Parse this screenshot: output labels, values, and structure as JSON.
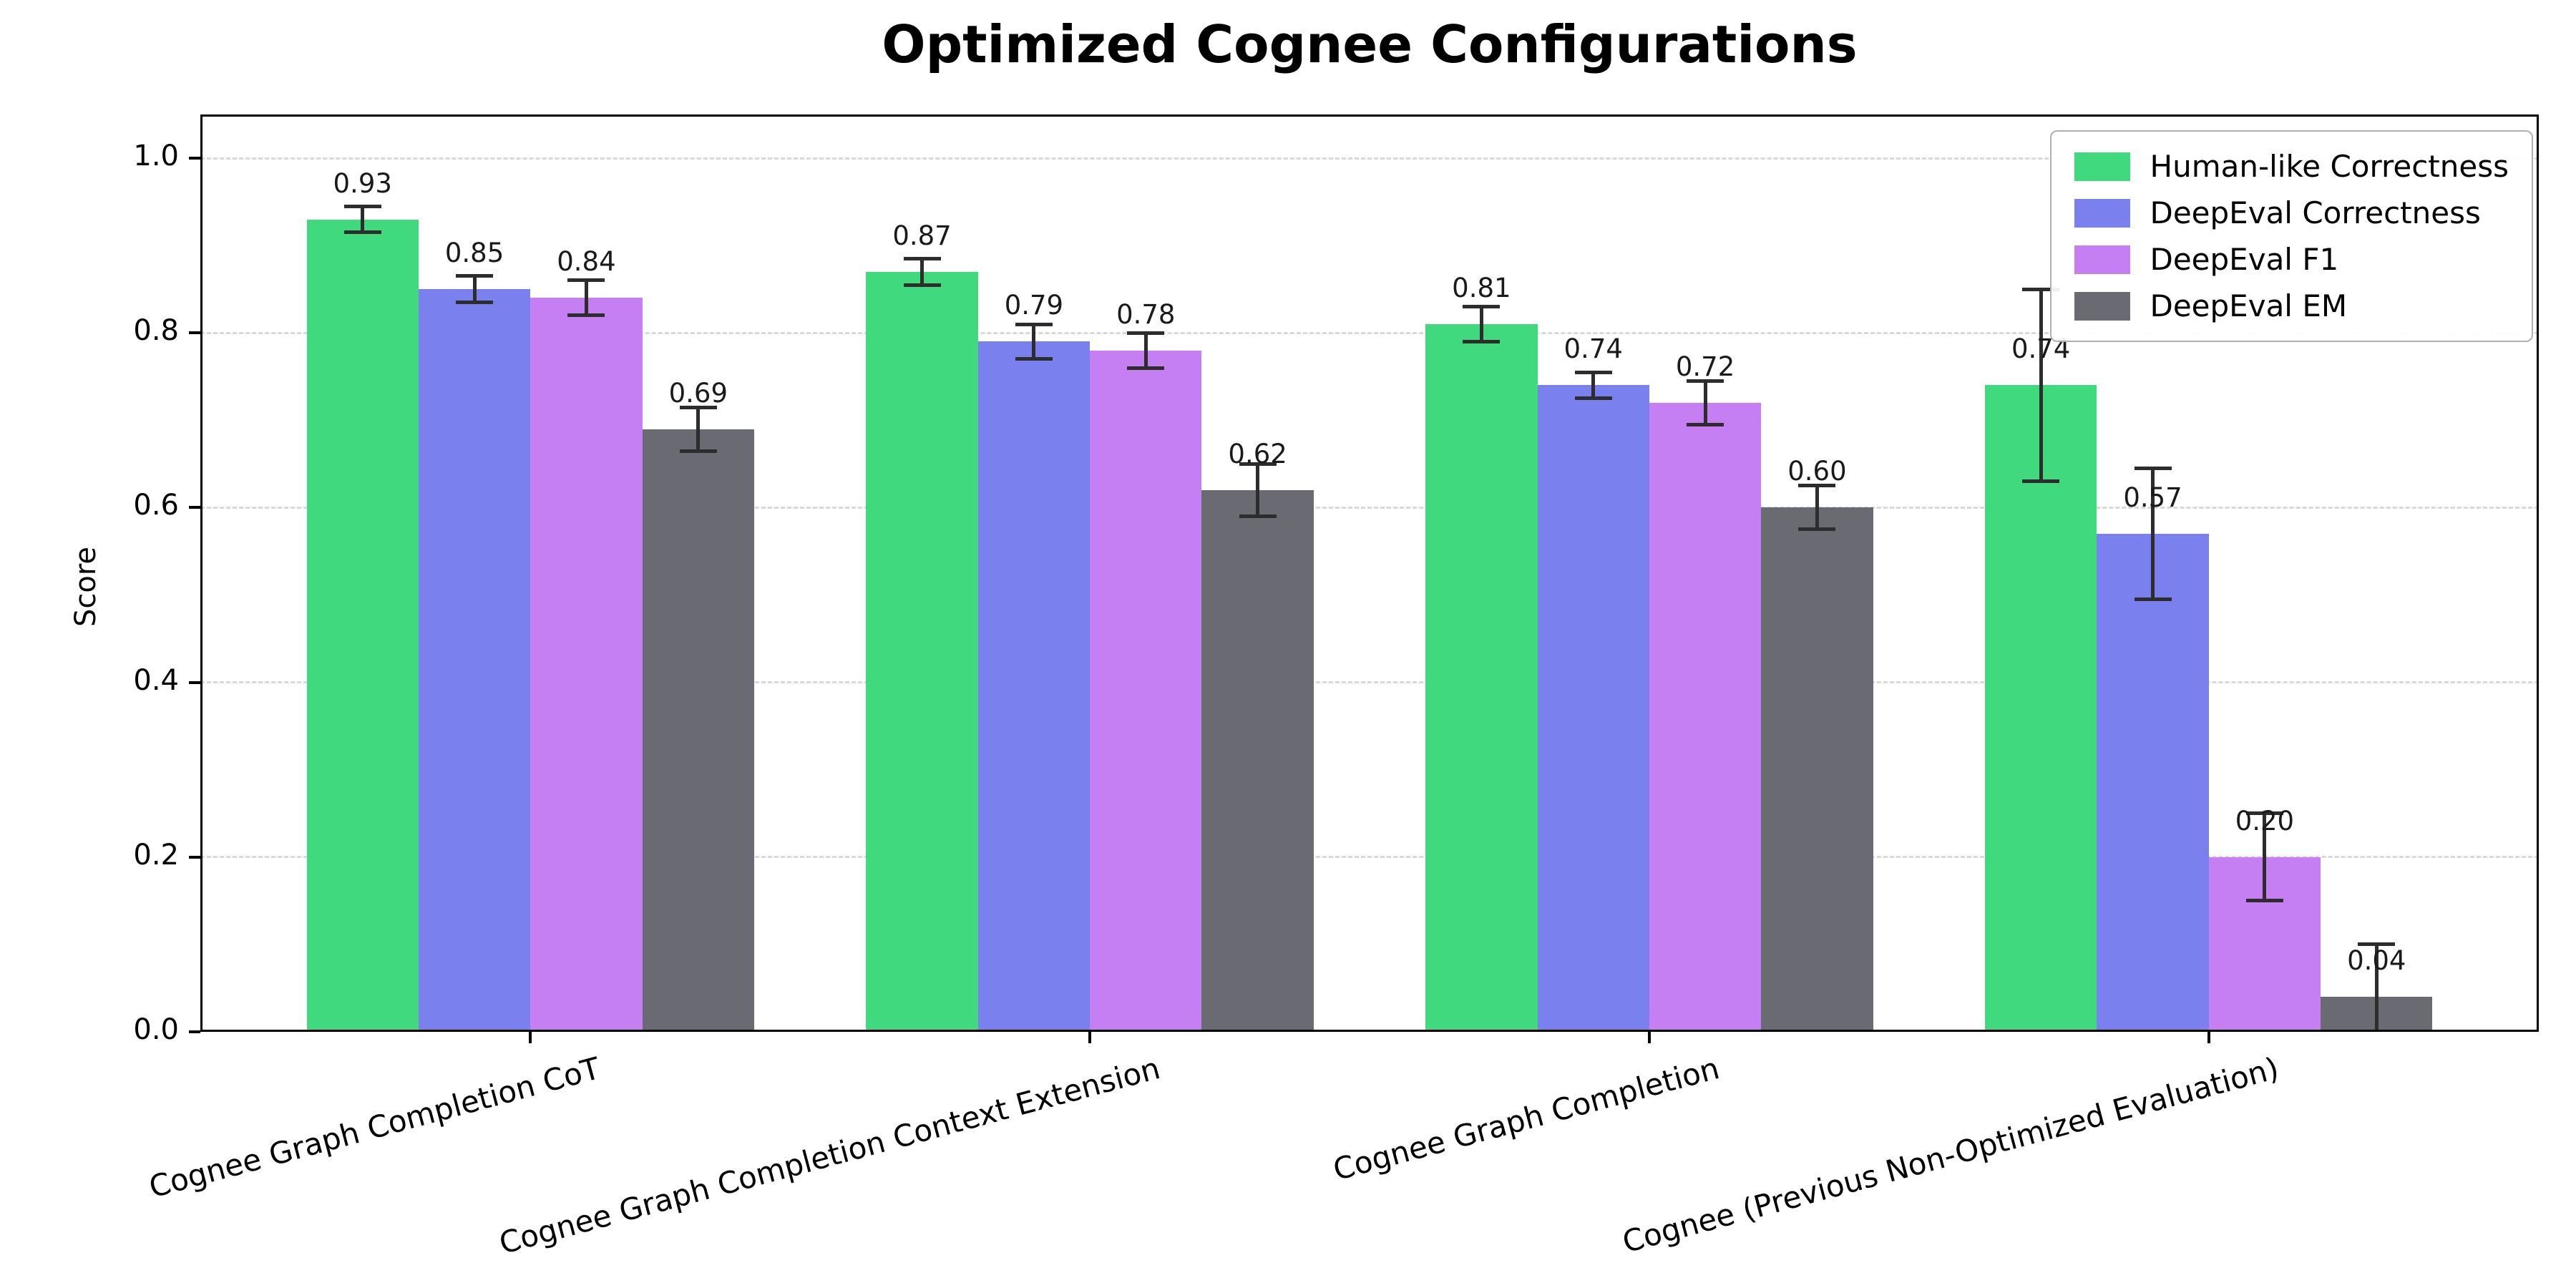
{
  "chart_data": {
    "type": "bar",
    "title": "Optimized Cognee Configurations",
    "ylabel": "Score",
    "xlabel": "",
    "ylim": [
      0,
      1.05
    ],
    "ytick_values": [
      0,
      0.2,
      0.4,
      0.6,
      0.8,
      1.0
    ],
    "ytick_labels": [
      "0.0",
      "0.2",
      "0.4",
      "0.6",
      "0.8",
      "1.0"
    ],
    "grid": "horizontal-dashed",
    "legend_position": "upper-right",
    "value_label_format": "%.2f",
    "error_bars": true,
    "categories": [
      "Cognee Graph Completion CoT",
      "Cognee Graph Completion Context Extension",
      "Cognee Graph Completion",
      "Cognee (Previous Non-Optimized Evaluation)"
    ],
    "series": [
      {
        "name": "Human-like Correctness",
        "color": "#41d97e",
        "values": [
          0.93,
          0.87,
          0.81,
          0.74
        ],
        "errors": [
          0.015,
          0.015,
          0.02,
          0.11
        ]
      },
      {
        "name": "DeepEval Correctness",
        "color": "#7b80ef",
        "values": [
          0.85,
          0.79,
          0.74,
          0.57
        ],
        "errors": [
          0.015,
          0.02,
          0.015,
          0.075
        ]
      },
      {
        "name": "DeepEval F1",
        "color": "#c67ff2",
        "values": [
          0.84,
          0.78,
          0.72,
          0.2
        ],
        "errors": [
          0.02,
          0.02,
          0.025,
          0.05
        ]
      },
      {
        "name": "DeepEval EM",
        "color": "#696a72",
        "values": [
          0.69,
          0.62,
          0.6,
          0.04
        ],
        "errors": [
          0.025,
          0.03,
          0.025,
          0.06
        ]
      }
    ],
    "colors": {
      "grid": "#d9d9d9",
      "spine": "#000000",
      "error": "#2d2d2d",
      "background": "#ffffff"
    }
  }
}
